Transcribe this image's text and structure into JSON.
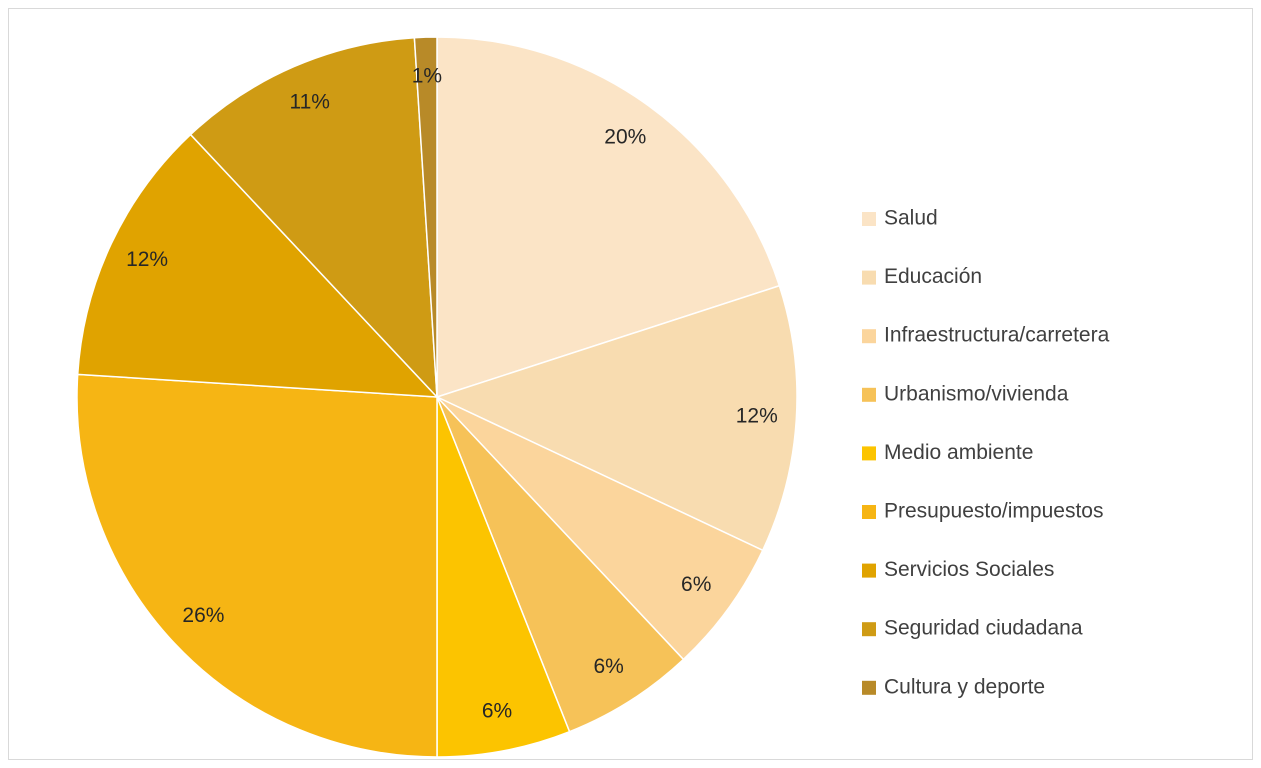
{
  "chart_data": {
    "type": "pie",
    "categories": [
      "Salud",
      "Educación",
      "Infraestructura/carretera",
      "Urbanismo/vivienda",
      "Medio ambiente",
      "Presupuesto/impuestos",
      "Servicios Sociales",
      "Seguridad ciudadana",
      "Cultura y deporte"
    ],
    "values": [
      20,
      12,
      6,
      6,
      6,
      26,
      12,
      11,
      1
    ],
    "value_labels": [
      "20%",
      "12%",
      "6%",
      "6%",
      "6%",
      "26%",
      "12%",
      "11%",
      "1%"
    ],
    "colors": [
      "#fbe4c6",
      "#f8dcb0",
      "#fbd59c",
      "#f6c258",
      "#fcc400",
      "#f6b514",
      "#e0a300",
      "#cf9b14",
      "#b88a28"
    ],
    "legend": "right"
  }
}
